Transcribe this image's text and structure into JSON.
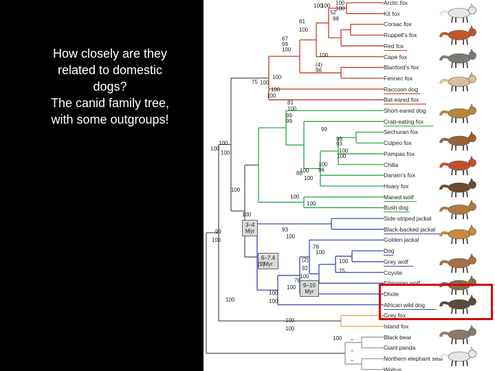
{
  "caption": "How closely  are they\nrelated to domestic\ndogs?\nThe canid family tree,\nwith some outgroups!",
  "colors": {
    "red_fox_clade": "#c0392b",
    "south_american_clade": "#27a844",
    "wolf_clade": "#3949ab",
    "grey_fox": "#f2a13a",
    "outgroup": "#9a9a9a",
    "highlight": "#d40000"
  },
  "species": [
    {
      "name": "Arctic fox",
      "clade": "red"
    },
    {
      "name": "Kit fox",
      "clade": "red"
    },
    {
      "name": "Corsac fox",
      "clade": "red"
    },
    {
      "name": "Ruppell's fox",
      "clade": "red"
    },
    {
      "name": "Red fox",
      "clade": "red"
    },
    {
      "name": "Cape fox",
      "clade": "red"
    },
    {
      "name": "Blanford's fox",
      "clade": "red"
    },
    {
      "name": "Fennec fox",
      "clade": "red"
    },
    {
      "name": "Raccoon dog",
      "clade": "red"
    },
    {
      "name": "Bat-eared fox",
      "clade": "red"
    },
    {
      "name": "Short-eared dog",
      "clade": "green"
    },
    {
      "name": "Crab-eating fox",
      "clade": "green"
    },
    {
      "name": "Sechuran fox",
      "clade": "green"
    },
    {
      "name": "Culpeo fox",
      "clade": "green"
    },
    {
      "name": "Pampas fox",
      "clade": "green"
    },
    {
      "name": "Chilla",
      "clade": "green"
    },
    {
      "name": "Darwin's fox",
      "clade": "green"
    },
    {
      "name": "Hoary fox",
      "clade": "green"
    },
    {
      "name": "Maned wolf",
      "clade": "green"
    },
    {
      "name": "Bush dog",
      "clade": "green"
    },
    {
      "name": "Side-striped jackal",
      "clade": "blue"
    },
    {
      "name": "Black-backed jackal",
      "clade": "blue"
    },
    {
      "name": "Golden jackal",
      "clade": "blue"
    },
    {
      "name": "Dog",
      "clade": "blue"
    },
    {
      "name": "Grey wolf",
      "clade": "blue"
    },
    {
      "name": "Coyote",
      "clade": "blue"
    },
    {
      "name": "Ethiopian wolf",
      "clade": "blue"
    },
    {
      "name": "Dhole",
      "clade": "blue"
    },
    {
      "name": "African wild dog",
      "clade": "blue"
    },
    {
      "name": "Grey fox",
      "clade": "orange"
    },
    {
      "name": "Island fox",
      "clade": "orange"
    },
    {
      "name": "Black bear",
      "clade": "outgroup"
    },
    {
      "name": "Giant panda",
      "clade": "outgroup"
    },
    {
      "name": "Northern elephant seal",
      "clade": "outgroup"
    },
    {
      "name": "Walrus",
      "clade": "outgroup"
    }
  ],
  "underlined": [
    "Red fox",
    "Raccoon dog",
    "Bat-eared fox",
    "Crab-eating fox",
    "Maned wolf",
    "Bush dog",
    "Black-backed jackal",
    "Dog",
    "Grey wolf",
    "African wild dog",
    "Grey fox"
  ],
  "node_labels": [
    "100",
    "100",
    "100",
    "100",
    "52",
    "98",
    "81",
    "100",
    "67",
    "99",
    "100",
    "100",
    "(4)",
    "96",
    "100",
    "75",
    "100",
    "100",
    "100",
    "81",
    "100",
    "99",
    "99",
    "99",
    "99",
    "93",
    "100",
    "100",
    "100",
    "96",
    "100",
    "80",
    "100",
    "100",
    "100",
    "100",
    "100",
    "100",
    "3–4\nMyr",
    "100",
    "100",
    "93",
    "100",
    "99",
    "100",
    "78",
    "100",
    "(2)",
    "92",
    "100",
    "75",
    "100",
    "9–10\nMyr",
    "78",
    "100",
    "6–7.4\nMyr",
    "(9)",
    "100",
    "100",
    "100",
    "100",
    "100",
    "100",
    "–",
    "–",
    "–"
  ],
  "time_boxes": [
    "3–4\nMyr",
    "9–10\nMyr",
    "6–7.4\nMyr"
  ],
  "highlighted_species": [
    "Dhole",
    "African wild dog"
  ]
}
